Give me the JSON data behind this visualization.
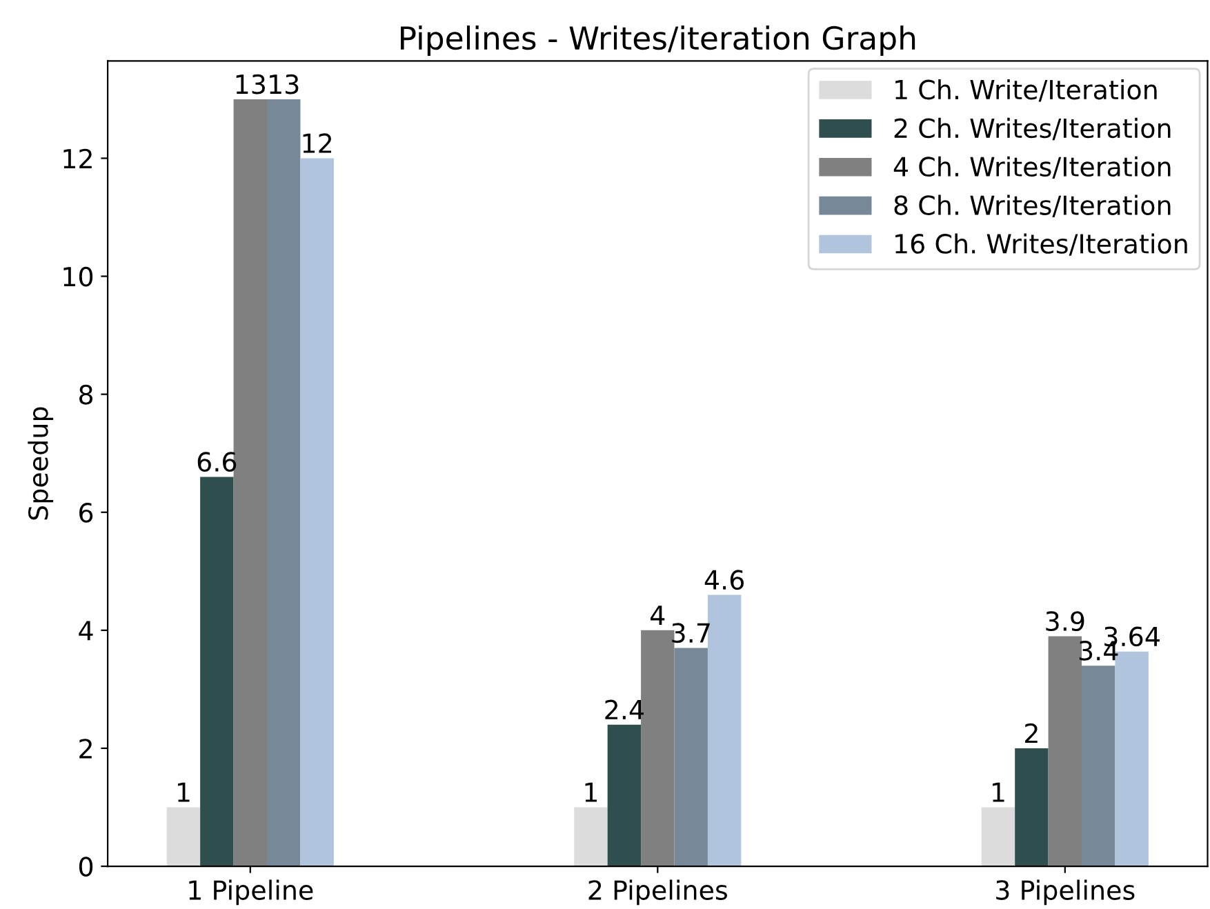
{
  "chart_data": {
    "type": "bar",
    "title": "Pipelines - Writes/iteration Graph",
    "ylabel": "Speedup",
    "categories": [
      "1 Pipeline",
      "2 Pipelines",
      "3 Pipelines"
    ],
    "series": [
      {
        "name": "1 Ch. Write/Iteration",
        "color": "#dcdcdc",
        "values": [
          1,
          1,
          1
        ]
      },
      {
        "name": "2 Ch. Writes/Iteration",
        "color": "#2f4f4f",
        "values": [
          6.6,
          2.4,
          2
        ]
      },
      {
        "name": "4 Ch. Writes/Iteration",
        "color": "#808080",
        "values": [
          13,
          4,
          3.9
        ]
      },
      {
        "name": "8 Ch. Writes/Iteration",
        "color": "#778899",
        "values": [
          13,
          3.7,
          3.4
        ]
      },
      {
        "name": "16 Ch. Writes/Iteration",
        "color": "#b0c4de",
        "values": [
          12,
          4.6,
          3.64
        ]
      }
    ],
    "ylim": [
      0,
      13.65
    ],
    "yticks": [
      0,
      2,
      4,
      6,
      8,
      10,
      12
    ],
    "data_labels": true,
    "legend": "top right",
    "grid": false
  }
}
